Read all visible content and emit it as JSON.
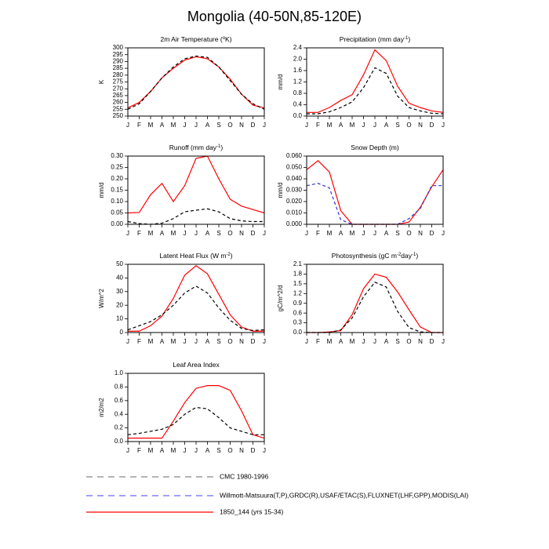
{
  "title": "Mongolia (40-50N,85-120E)",
  "legend": [
    {
      "name": "CMC 1980-1996",
      "color": "#888888",
      "dash": "8,6"
    },
    {
      "name": "Willmott-Matsuura(T,P),GRDC(R),USAF/ETAC(S),FLUXNET(LHF,GPP),MODIS(LAI)",
      "color": "#6666ff",
      "dash": "8,6"
    },
    {
      "name": "1850_144 (yrs 15-34)",
      "color": "#ff0000",
      "dash": "none"
    }
  ],
  "chart_data": [
    {
      "type": "line",
      "title": [
        {
          "text": "2m Air Temperature ("
        },
        {
          "text": "o",
          "sup": true
        },
        {
          "text": "K)"
        }
      ],
      "ylabel": "K",
      "categories": [
        "J",
        "F",
        "M",
        "A",
        "M",
        "J",
        "J",
        "A",
        "S",
        "O",
        "N",
        "D",
        "J"
      ],
      "ylim": [
        250,
        300
      ],
      "yticks": [
        250,
        255,
        260,
        265,
        270,
        275,
        280,
        285,
        290,
        295,
        300
      ],
      "series": [
        {
          "color": "#ff0000",
          "dash": "none",
          "values": [
            256,
            260,
            268,
            278,
            285,
            291,
            293.5,
            292,
            286,
            277,
            266,
            258,
            256
          ]
        },
        {
          "color": "#000000",
          "dash": "4,3",
          "values": [
            255,
            259,
            268,
            278,
            286,
            292,
            294,
            293,
            286,
            276,
            266,
            259,
            255
          ]
        }
      ]
    },
    {
      "type": "line",
      "title": [
        {
          "text": "Precipitation (mm day"
        },
        {
          "text": "-1",
          "sup": true
        },
        {
          "text": ")"
        }
      ],
      "ylabel": "mm/d",
      "categories": [
        "J",
        "F",
        "M",
        "A",
        "M",
        "J",
        "J",
        "A",
        "S",
        "O",
        "N",
        "D",
        "J"
      ],
      "ylim": [
        0,
        2.4
      ],
      "yticks": [
        {
          "value": 0,
          "label": "0.0"
        },
        0.4,
        0.8,
        1.2,
        1.6,
        {
          "value": 2,
          "label": "2.0"
        },
        2.4
      ],
      "series": [
        {
          "color": "#ff0000",
          "dash": "none",
          "values": [
            0.13,
            0.13,
            0.3,
            0.55,
            0.75,
            1.45,
            2.33,
            1.95,
            1.05,
            0.45,
            0.3,
            0.18,
            0.13
          ]
        },
        {
          "color": "#000000",
          "dash": "4,3",
          "values": [
            0.08,
            0.08,
            0.15,
            0.3,
            0.5,
            1.0,
            1.7,
            1.5,
            0.7,
            0.3,
            0.18,
            0.1,
            0.08
          ]
        }
      ]
    },
    {
      "type": "line",
      "title": [
        {
          "text": "Runoff (mm day"
        },
        {
          "text": "-1",
          "sup": true
        },
        {
          "text": ")"
        }
      ],
      "ylabel": "mm/d",
      "categories": [
        "J",
        "F",
        "M",
        "A",
        "M",
        "J",
        "J",
        "A",
        "S",
        "O",
        "N",
        "D",
        "J"
      ],
      "ylim": [
        0,
        0.3
      ],
      "yticks": [
        {
          "value": 0,
          "label": "0.00"
        },
        0.05,
        {
          "value": 0.1,
          "label": "0.10"
        },
        0.15,
        {
          "value": 0.2,
          "label": "0.20"
        },
        0.25,
        {
          "value": 0.3,
          "label": "0.30"
        }
      ],
      "series": [
        {
          "color": "#ff0000",
          "dash": "none",
          "values": [
            0.05,
            0.052,
            0.13,
            0.18,
            0.1,
            0.17,
            0.29,
            0.3,
            0.2,
            0.11,
            0.08,
            0.065,
            0.05
          ]
        },
        {
          "color": "#000000",
          "dash": "4,3",
          "values": [
            0.012,
            0.003,
            0,
            0.005,
            0.025,
            0.055,
            0.062,
            0.068,
            0.055,
            0.025,
            0.015,
            0.012,
            0.012
          ]
        }
      ]
    },
    {
      "type": "line",
      "title": [
        {
          "text": "Snow Depth (m)"
        }
      ],
      "ylabel": "mm/d",
      "categories": [
        "J",
        "F",
        "M",
        "A",
        "M",
        "J",
        "J",
        "A",
        "S",
        "O",
        "N",
        "D",
        "J"
      ],
      "ylim": [
        0,
        0.06
      ],
      "yticks": [
        {
          "value": 0,
          "label": "0.000"
        },
        {
          "value": 0.01,
          "label": "0.010"
        },
        {
          "value": 0.02,
          "label": "0.020"
        },
        {
          "value": 0.03,
          "label": "0.030"
        },
        {
          "value": 0.04,
          "label": "0.040"
        },
        {
          "value": 0.05,
          "label": "0.050"
        },
        {
          "value": 0.06,
          "label": "0.060"
        }
      ],
      "series": [
        {
          "color": "#ff0000",
          "dash": "none",
          "values": [
            0.048,
            0.056,
            0.046,
            0.012,
            0,
            0,
            0,
            0,
            0,
            0.002,
            0.015,
            0.033,
            0.048
          ]
        },
        {
          "color": "#3333cc",
          "dash": "4,3",
          "values": [
            0.034,
            0.036,
            0.032,
            0.004,
            0,
            0,
            0,
            0,
            0,
            0.005,
            0.014,
            0.034,
            0.034
          ]
        }
      ]
    },
    {
      "type": "line",
      "title": [
        {
          "text": "Latent Heat Flux (W m"
        },
        {
          "text": "-2",
          "sup": true
        },
        {
          "text": ")"
        }
      ],
      "ylabel": "W/m^2",
      "categories": [
        "J",
        "F",
        "M",
        "A",
        "M",
        "J",
        "J",
        "A",
        "S",
        "O",
        "N",
        "D",
        "J"
      ],
      "ylim": [
        0,
        50
      ],
      "yticks": [
        0,
        10,
        20,
        30,
        40,
        50
      ],
      "series": [
        {
          "color": "#ff0000",
          "dash": "none",
          "values": [
            1,
            1,
            5,
            12,
            25,
            42,
            49,
            43,
            28,
            13,
            4,
            1,
            1
          ]
        },
        {
          "color": "#000000",
          "dash": "4,3",
          "values": [
            2,
            5,
            8,
            13,
            20,
            29,
            34,
            29,
            18,
            9,
            3,
            1.5,
            2
          ]
        }
      ]
    },
    {
      "type": "line",
      "title": [
        {
          "text": "Photosynthesis (gC m"
        },
        {
          "text": "-2",
          "sup": true
        },
        {
          "text": "day"
        },
        {
          "text": "-1",
          "sup": true
        },
        {
          "text": ")"
        }
      ],
      "ylabel": "gC/m^2/d",
      "categories": [
        "J",
        "F",
        "M",
        "A",
        "M",
        "J",
        "J",
        "A",
        "S",
        "O",
        "N",
        "D",
        "J"
      ],
      "ylim": [
        0,
        2.1
      ],
      "yticks": [
        {
          "value": 0,
          "label": "0.0"
        },
        0.3,
        0.6,
        0.9,
        1.2,
        1.5,
        1.8,
        2.1
      ],
      "series": [
        {
          "color": "#ff0000",
          "dash": "none",
          "values": [
            0,
            0,
            0.02,
            0.06,
            0.55,
            1.35,
            1.8,
            1.7,
            1.25,
            0.7,
            0.17,
            0,
            0
          ]
        },
        {
          "color": "#000000",
          "dash": "4,3",
          "values": [
            0,
            0,
            0,
            0.08,
            0.45,
            1.1,
            1.55,
            1.4,
            0.65,
            0.15,
            0.02,
            0,
            0
          ]
        }
      ]
    },
    {
      "type": "line",
      "title": [
        {
          "text": "Leaf Area Index"
        }
      ],
      "ylabel": "m2/m2",
      "categories": [
        "J",
        "F",
        "M",
        "A",
        "M",
        "J",
        "J",
        "A",
        "S",
        "O",
        "N",
        "D",
        "J"
      ],
      "ylim": [
        0,
        1
      ],
      "yticks": [
        {
          "value": 0,
          "label": "0.0"
        },
        0.2,
        0.4,
        0.6,
        0.8,
        {
          "value": 1,
          "label": "1.0"
        }
      ],
      "series": [
        {
          "color": "#ff0000",
          "dash": "none",
          "values": [
            0.05,
            0.05,
            0.05,
            0.05,
            0.3,
            0.57,
            0.78,
            0.82,
            0.82,
            0.75,
            0.45,
            0.1,
            0.05
          ]
        },
        {
          "color": "#000000",
          "dash": "4,3",
          "values": [
            0.1,
            0.12,
            0.15,
            0.18,
            0.25,
            0.4,
            0.5,
            0.48,
            0.35,
            0.2,
            0.15,
            0.1,
            0.1
          ]
        }
      ]
    }
  ]
}
